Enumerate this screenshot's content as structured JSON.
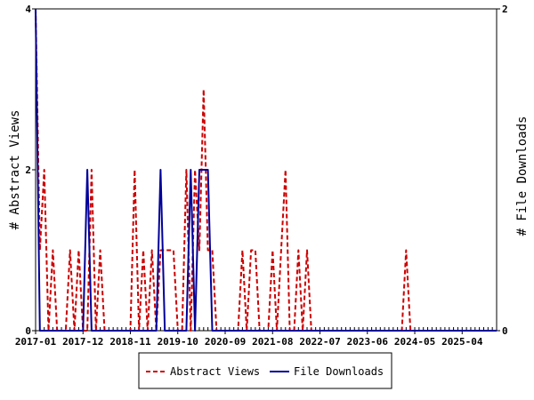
{
  "chart_data": {
    "type": "line",
    "x_tick_labels": [
      "2017-01",
      "2017-12",
      "2018-11",
      "2019-10",
      "2020-09",
      "2021-08",
      "2022-07",
      "2023-06",
      "2024-05",
      "2025-04"
    ],
    "y_left": {
      "label": "# Abstract Views",
      "ylim": [
        0,
        4
      ],
      "ticks": [
        "0",
        "2",
        "4"
      ]
    },
    "y_right": {
      "label": "# File Downloads",
      "ylim": [
        0,
        2
      ],
      "ticks": [
        "0",
        "2"
      ]
    },
    "x_range_months": [
      0,
      107
    ],
    "legend_position": "bottom-center",
    "series": [
      {
        "name": "Abstract Views",
        "axis": "left",
        "color": "#cc0000",
        "style": "dashed",
        "points": [
          [
            0,
            4
          ],
          [
            1,
            1
          ],
          [
            2,
            2
          ],
          [
            3,
            0
          ],
          [
            4,
            1
          ],
          [
            5,
            0
          ],
          [
            6,
            0
          ],
          [
            7,
            0
          ],
          [
            8,
            1
          ],
          [
            9,
            0
          ],
          [
            10,
            1
          ],
          [
            11,
            0
          ],
          [
            12,
            0
          ],
          [
            13,
            2
          ],
          [
            14,
            0
          ],
          [
            15,
            1
          ],
          [
            16,
            0
          ],
          [
            17,
            0
          ],
          [
            18,
            0
          ],
          [
            19,
            0
          ],
          [
            20,
            0
          ],
          [
            21,
            0
          ],
          [
            22,
            0
          ],
          [
            23,
            2
          ],
          [
            24,
            0
          ],
          [
            25,
            1
          ],
          [
            26,
            0
          ],
          [
            27,
            1
          ],
          [
            28,
            0
          ],
          [
            29,
            1
          ],
          [
            30,
            1
          ],
          [
            31,
            1
          ],
          [
            32,
            1
          ],
          [
            33,
            0
          ],
          [
            34,
            0
          ],
          [
            35,
            2
          ],
          [
            36,
            0
          ],
          [
            37,
            2
          ],
          [
            38,
            1
          ],
          [
            39,
            3
          ],
          [
            40,
            1
          ],
          [
            41,
            1
          ],
          [
            42,
            0
          ],
          [
            43,
            0
          ],
          [
            44,
            0
          ],
          [
            45,
            0
          ],
          [
            46,
            0
          ],
          [
            47,
            0
          ],
          [
            48,
            1
          ],
          [
            49,
            0
          ],
          [
            50,
            1
          ],
          [
            51,
            1
          ],
          [
            52,
            0
          ],
          [
            53,
            0
          ],
          [
            54,
            0
          ],
          [
            55,
            1
          ],
          [
            56,
            0
          ],
          [
            57,
            1
          ],
          [
            58,
            2
          ],
          [
            59,
            0
          ],
          [
            60,
            0
          ],
          [
            61,
            1
          ],
          [
            62,
            0
          ],
          [
            63,
            1
          ],
          [
            64,
            0
          ],
          [
            65,
            0
          ],
          [
            66,
            0
          ],
          [
            67,
            0
          ],
          [
            68,
            0
          ],
          [
            69,
            0
          ],
          [
            70,
            0
          ],
          [
            71,
            0
          ],
          [
            72,
            0
          ],
          [
            73,
            0
          ],
          [
            74,
            0
          ],
          [
            75,
            0
          ],
          [
            76,
            0
          ],
          [
            77,
            0
          ],
          [
            78,
            0
          ],
          [
            79,
            0
          ],
          [
            80,
            0
          ],
          [
            81,
            0
          ],
          [
            82,
            0
          ],
          [
            83,
            0
          ],
          [
            84,
            0
          ],
          [
            85,
            0
          ],
          [
            86,
            1
          ],
          [
            87,
            0
          ],
          [
            88,
            0
          ],
          [
            89,
            0
          ],
          [
            90,
            0
          ],
          [
            91,
            0
          ],
          [
            92,
            0
          ],
          [
            93,
            0
          ],
          [
            94,
            0
          ],
          [
            95,
            0
          ],
          [
            96,
            0
          ],
          [
            97,
            0
          ],
          [
            98,
            0
          ],
          [
            99,
            0
          ],
          [
            100,
            0
          ],
          [
            101,
            0
          ],
          [
            102,
            0
          ],
          [
            103,
            0
          ],
          [
            104,
            0
          ],
          [
            105,
            0
          ],
          [
            106,
            0
          ],
          [
            107,
            0
          ]
        ]
      },
      {
        "name": "File Downloads",
        "axis": "right",
        "color": "#000099",
        "style": "solid",
        "points": [
          [
            0,
            2
          ],
          [
            1,
            0
          ],
          [
            2,
            0
          ],
          [
            3,
            0
          ],
          [
            4,
            0
          ],
          [
            5,
            0
          ],
          [
            6,
            0
          ],
          [
            7,
            0
          ],
          [
            8,
            0
          ],
          [
            9,
            0
          ],
          [
            10,
            0
          ],
          [
            11,
            0
          ],
          [
            12,
            1
          ],
          [
            13,
            0
          ],
          [
            14,
            0
          ],
          [
            15,
            0
          ],
          [
            16,
            0
          ],
          [
            17,
            0
          ],
          [
            18,
            0
          ],
          [
            19,
            0
          ],
          [
            20,
            0
          ],
          [
            21,
            0
          ],
          [
            22,
            0
          ],
          [
            23,
            0
          ],
          [
            24,
            0
          ],
          [
            25,
            0
          ],
          [
            26,
            0
          ],
          [
            27,
            0
          ],
          [
            28,
            0
          ],
          [
            29,
            1
          ],
          [
            30,
            0
          ],
          [
            31,
            0
          ],
          [
            32,
            0
          ],
          [
            33,
            0
          ],
          [
            34,
            0
          ],
          [
            35,
            0
          ],
          [
            36,
            1
          ],
          [
            37,
            0
          ],
          [
            38,
            1
          ],
          [
            39,
            1
          ],
          [
            40,
            1
          ],
          [
            41,
            0
          ],
          [
            42,
            0
          ],
          [
            43,
            0
          ],
          [
            44,
            0
          ],
          [
            45,
            0
          ],
          [
            46,
            0
          ],
          [
            47,
            0
          ],
          [
            48,
            0
          ],
          [
            49,
            0
          ],
          [
            50,
            0
          ],
          [
            51,
            0
          ],
          [
            52,
            0
          ],
          [
            53,
            0
          ],
          [
            54,
            0
          ],
          [
            55,
            0
          ],
          [
            56,
            0
          ],
          [
            57,
            0
          ],
          [
            58,
            0
          ],
          [
            59,
            0
          ],
          [
            60,
            0
          ],
          [
            61,
            0
          ],
          [
            62,
            0
          ],
          [
            63,
            0
          ],
          [
            64,
            0
          ],
          [
            65,
            0
          ],
          [
            66,
            0
          ],
          [
            67,
            0
          ],
          [
            68,
            0
          ],
          [
            69,
            0
          ],
          [
            70,
            0
          ],
          [
            71,
            0
          ],
          [
            72,
            0
          ],
          [
            73,
            0
          ],
          [
            74,
            0
          ],
          [
            75,
            0
          ],
          [
            76,
            0
          ],
          [
            77,
            0
          ],
          [
            78,
            0
          ],
          [
            79,
            0
          ],
          [
            80,
            0
          ],
          [
            81,
            0
          ],
          [
            82,
            0
          ],
          [
            83,
            0
          ],
          [
            84,
            0
          ],
          [
            85,
            0
          ],
          [
            86,
            0
          ],
          [
            87,
            0
          ],
          [
            88,
            0
          ],
          [
            89,
            0
          ],
          [
            90,
            0
          ],
          [
            91,
            0
          ],
          [
            92,
            0
          ],
          [
            93,
            0
          ],
          [
            94,
            0
          ],
          [
            95,
            0
          ],
          [
            96,
            0
          ],
          [
            97,
            0
          ],
          [
            98,
            0
          ],
          [
            99,
            0
          ],
          [
            100,
            0
          ],
          [
            101,
            0
          ],
          [
            102,
            0
          ],
          [
            103,
            0
          ],
          [
            104,
            0
          ],
          [
            105,
            0
          ],
          [
            106,
            0
          ],
          [
            107,
            0
          ]
        ]
      }
    ]
  }
}
